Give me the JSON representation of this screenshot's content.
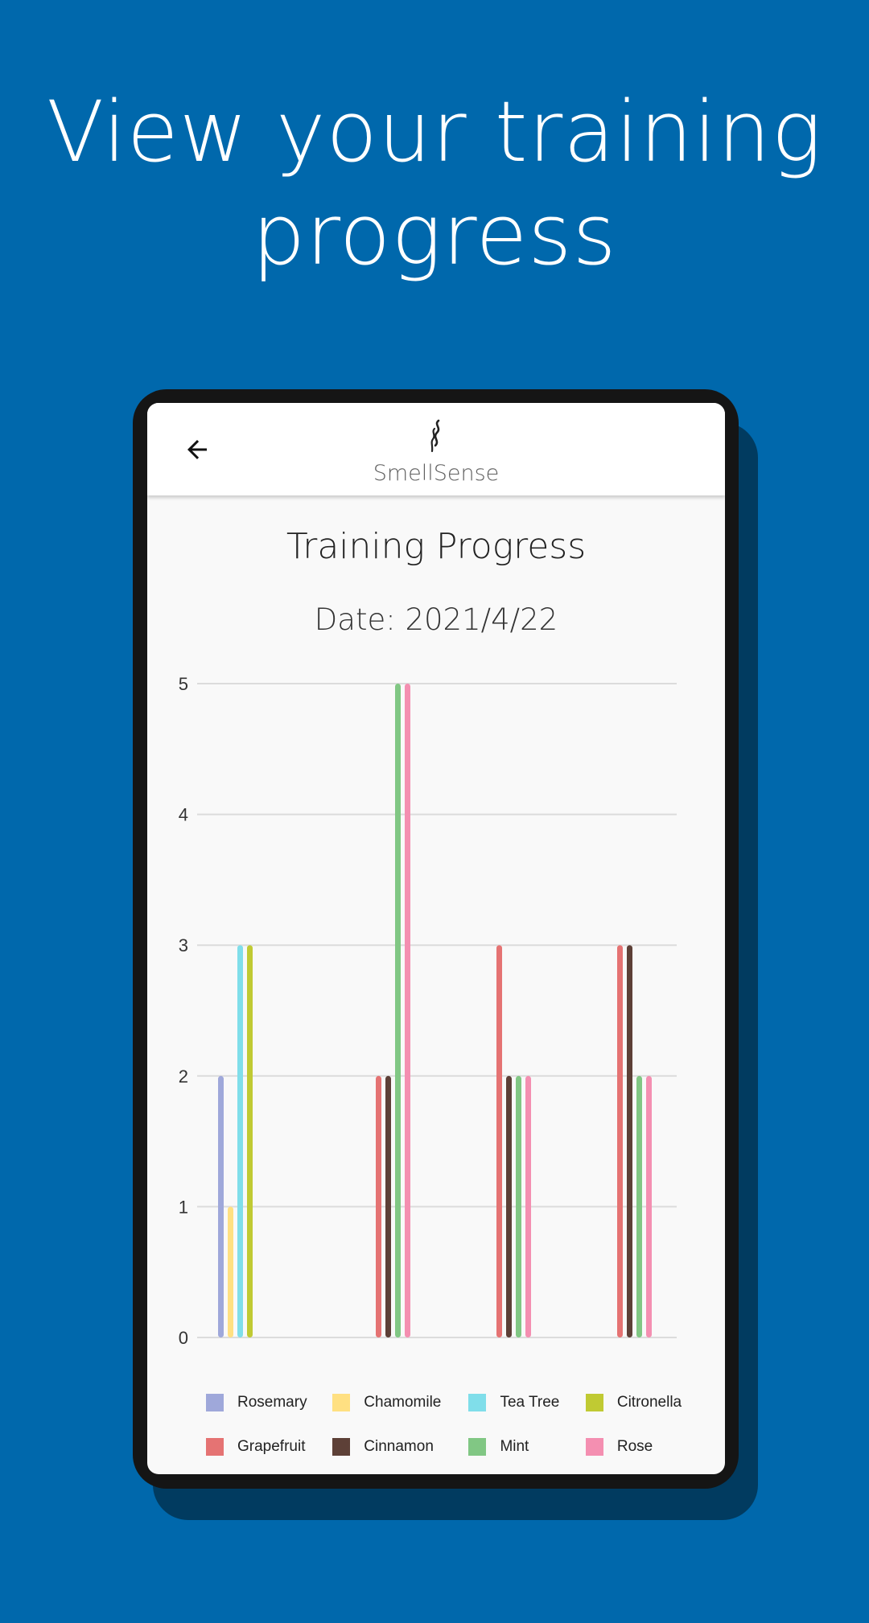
{
  "headline": {
    "line1": "View your training",
    "line2": "progress"
  },
  "appbar": {
    "brand": "SmellSense",
    "back_icon": "arrow-left-icon",
    "logo_icon": "smell-wisp-icon"
  },
  "page": {
    "title": "Training Progress",
    "date_label": "Date: 2021/4/22"
  },
  "colors": {
    "background": "#0068ac",
    "Rosemary": "#9fa8da",
    "Chamomile": "#ffe082",
    "Tea Tree": "#80deea",
    "Citronella": "#c0ca33",
    "Grapefruit": "#e57373",
    "Cinnamon": "#5d4037",
    "Mint": "#81c784",
    "Rose": "#f48fb1"
  },
  "chart_data": {
    "type": "bar",
    "ylim": [
      0,
      5
    ],
    "yticks": [
      "0",
      "1",
      "2",
      "3",
      "4",
      "5"
    ],
    "grid": true,
    "legend_position": "bottom",
    "groups": [
      {
        "bars": [
          {
            "series": "Rosemary",
            "value": 2
          },
          {
            "series": "Chamomile",
            "value": 1
          },
          {
            "series": "Tea Tree",
            "value": 3
          },
          {
            "series": "Citronella",
            "value": 3
          }
        ]
      },
      {
        "bars": [
          {
            "series": "Grapefruit",
            "value": 2
          },
          {
            "series": "Cinnamon",
            "value": 2
          },
          {
            "series": "Mint",
            "value": 5
          },
          {
            "series": "Rose",
            "value": 5
          }
        ]
      },
      {
        "bars": [
          {
            "series": "Grapefruit",
            "value": 3
          },
          {
            "series": "Cinnamon",
            "value": 2
          },
          {
            "series": "Mint",
            "value": 2
          },
          {
            "series": "Rose",
            "value": 2
          }
        ]
      },
      {
        "bars": [
          {
            "series": "Grapefruit",
            "value": 3
          },
          {
            "series": "Cinnamon",
            "value": 3
          },
          {
            "series": "Mint",
            "value": 2
          },
          {
            "series": "Rose",
            "value": 2
          }
        ]
      }
    ],
    "legend": [
      [
        "Rosemary",
        "Chamomile",
        "Tea Tree",
        "Citronella"
      ],
      [
        "Grapefruit",
        "Cinnamon",
        "Mint",
        "Rose"
      ]
    ]
  }
}
